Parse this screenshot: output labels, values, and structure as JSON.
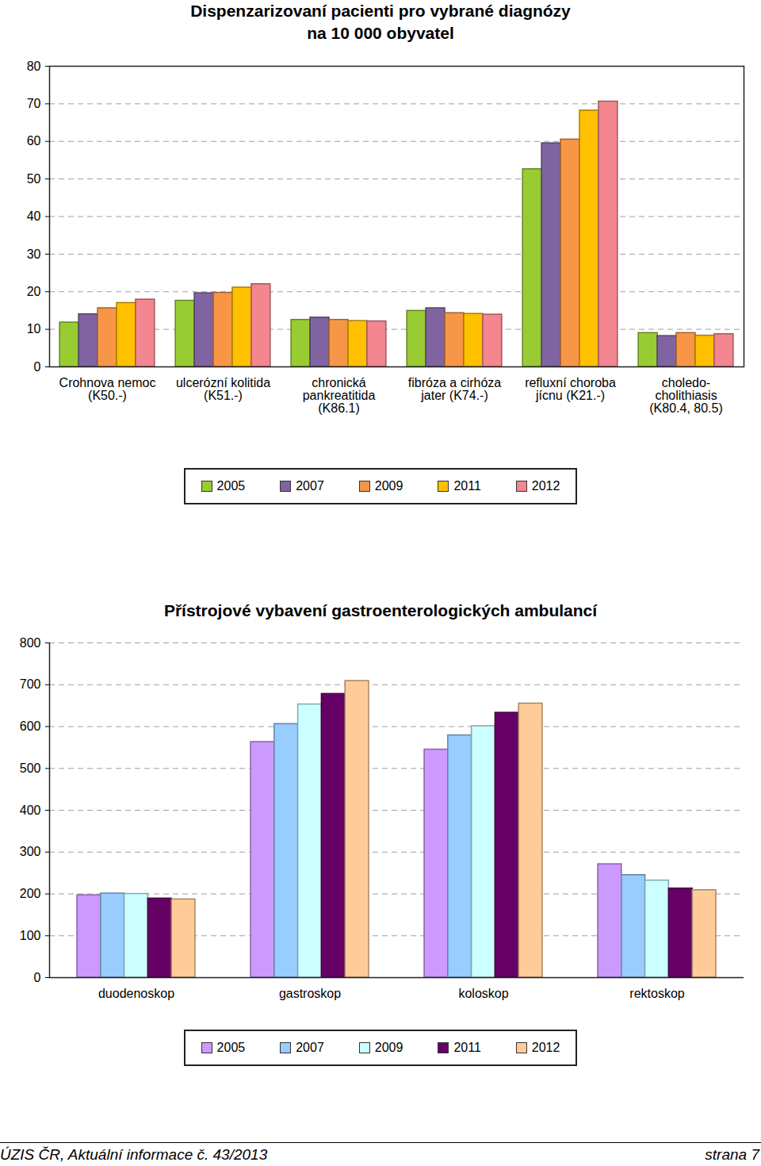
{
  "chart_data": [
    {
      "type": "bar",
      "title": "Dispenzarizovaní pacienti pro vybrané diagnózy\nna 10 000 obyvatel",
      "categories": [
        "Crohnova nemoc\n(K50.-)",
        "ulcerózní kolitida\n(K51.-)",
        "chronická\npankreatitida\n(K86.1)",
        "fibróza a cirhóza\njater (K74.-)",
        "refluxní choroba\njícnu (K21.-)",
        "choledo-\ncholithiasis\n(K80.4, 80.5)"
      ],
      "series": [
        {
          "name": "2005",
          "color": "#99cc33",
          "values": [
            11.8,
            17.6,
            12.5,
            14.9,
            52.6,
            9.0
          ]
        },
        {
          "name": "2007",
          "color": "#8064a2",
          "values": [
            14.0,
            19.6,
            13.1,
            15.6,
            59.5,
            8.2
          ]
        },
        {
          "name": "2009",
          "color": "#f79646",
          "values": [
            15.6,
            19.7,
            12.5,
            14.3,
            60.5,
            9.0
          ]
        },
        {
          "name": "2011",
          "color": "#ffc000",
          "values": [
            17.0,
            21.1,
            12.2,
            14.1,
            68.2,
            8.3
          ]
        },
        {
          "name": "2012",
          "color": "#f4868f",
          "values": [
            17.9,
            22.0,
            12.1,
            13.9,
            70.6,
            8.7
          ]
        }
      ],
      "ylim": [
        0,
        80
      ],
      "yticks": [
        0,
        10,
        20,
        30,
        40,
        50,
        60,
        70,
        80
      ],
      "grid": true,
      "legend": "bottom"
    },
    {
      "type": "bar",
      "title": "Přístrojové vybavení gastroenterologických ambulancí",
      "categories": [
        "duodenoskop",
        "gastroskop",
        "koloskop",
        "rektoskop"
      ],
      "series": [
        {
          "name": "2005",
          "color": "#cc99ff",
          "values": [
            197,
            563,
            545,
            271
          ]
        },
        {
          "name": "2007",
          "color": "#99ccff",
          "values": [
            201,
            606,
            579,
            245
          ]
        },
        {
          "name": "2009",
          "color": "#ccffff",
          "values": [
            200,
            653,
            601,
            232
          ]
        },
        {
          "name": "2011",
          "color": "#660066",
          "values": [
            189,
            678,
            633,
            213
          ]
        },
        {
          "name": "2012",
          "color": "#ffcc99",
          "values": [
            187,
            709,
            655,
            209
          ]
        }
      ],
      "ylim": [
        0,
        800
      ],
      "yticks": [
        0,
        100,
        200,
        300,
        400,
        500,
        600,
        700,
        800
      ],
      "grid": true,
      "legend": "bottom"
    }
  ],
  "footer": {
    "left": "ÚZIS ČR, Aktuální informace č. 43/2013",
    "right": "strana 7"
  }
}
